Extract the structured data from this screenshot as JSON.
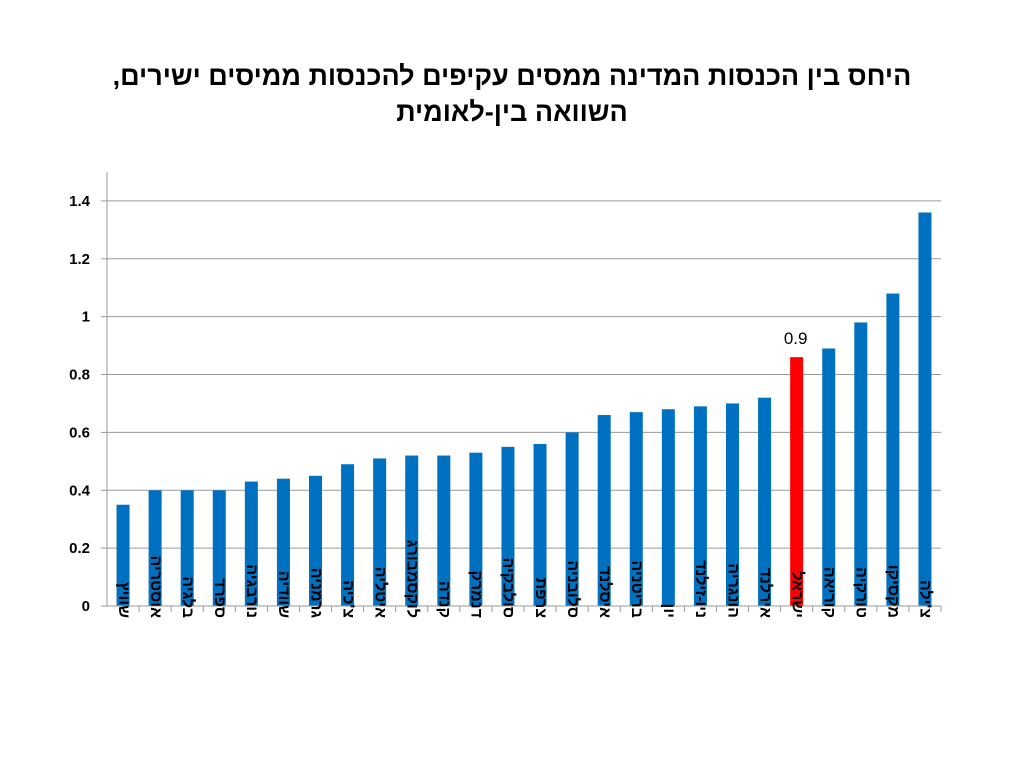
{
  "chart_data": {
    "type": "bar",
    "title_lines": [
      "היחס בין הכנסות המדינה ממסים עקיפים להכנסות ממיסים ישירים,",
      "השוואה בין-לאומית"
    ],
    "xlabel": "",
    "ylabel": "",
    "ylim": [
      0,
      1.5
    ],
    "yticks": [
      {
        "value": 0,
        "label": "0"
      },
      {
        "value": 0.2,
        "label": "0.2"
      },
      {
        "value": 0.4,
        "label": "0.4"
      },
      {
        "value": 0.6,
        "label": "0.6"
      },
      {
        "value": 0.8,
        "label": "0.8"
      },
      {
        "value": 1,
        "label": "1"
      },
      {
        "value": 1.2,
        "label": "1.2"
      },
      {
        "value": 1.4,
        "label": "1.4"
      }
    ],
    "grid": true,
    "legend": "none",
    "bar_color": "#0070C0",
    "highlight_color": "#FF0000",
    "categories": [
      "שוויץ",
      "אוסטריה",
      "בלגיה",
      "ספרד",
      "נורבגיה",
      "שוודיה",
      "גרמניה",
      "צ'כיה",
      "איטליה",
      "לוקסמבורג",
      "קנדה",
      "דנמרק",
      "סולבקיה",
      "צרפת",
      "סלובניה",
      "איסלנד",
      "בריטניה",
      "יון",
      "ניו-זילנד",
      "הונגריה",
      "אירלנד",
      "ישראל",
      "קוריאה",
      "טורקיה",
      "מקסיקו",
      "צ'ילה"
    ],
    "values": [
      0.35,
      0.4,
      0.4,
      0.4,
      0.43,
      0.44,
      0.45,
      0.49,
      0.51,
      0.52,
      0.52,
      0.53,
      0.55,
      0.56,
      0.6,
      0.66,
      0.67,
      0.68,
      0.69,
      0.7,
      0.72,
      0.86,
      0.89,
      0.98,
      1.08,
      1.36
    ],
    "highlight": [
      {
        "category": "ישראל",
        "data_label": "0.9"
      }
    ]
  }
}
